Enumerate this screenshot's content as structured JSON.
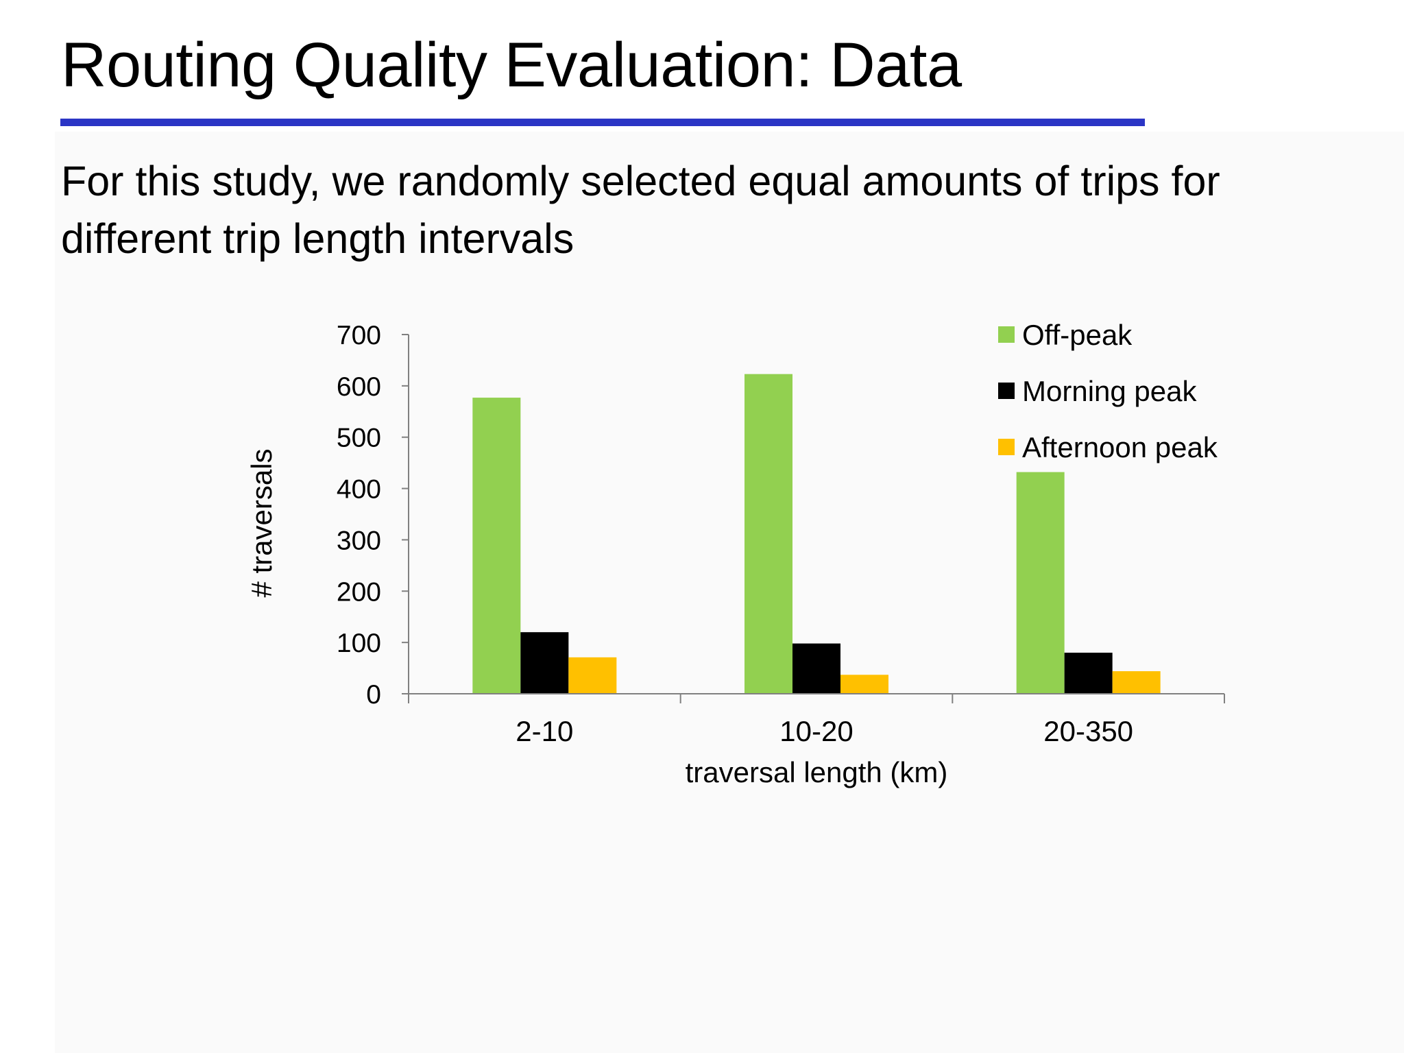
{
  "slide": {
    "title": "Routing Quality Evaluation: Data",
    "body": "For this study, we randomly selected equal amounts of trips for different trip length intervals"
  },
  "colors": {
    "title_rule": "#2b35c5",
    "off_peak": "#92d050",
    "morning_peak": "#000000",
    "afternoon_peak": "#ffc000"
  },
  "chart_data": {
    "type": "bar",
    "categories": [
      "2-10",
      "10-20",
      "20-350"
    ],
    "series": [
      {
        "name": "Off-peak",
        "values": [
          577,
          623,
          432
        ],
        "color": "#92d050"
      },
      {
        "name": "Morning peak",
        "values": [
          120,
          98,
          80
        ],
        "color": "#000000"
      },
      {
        "name": "Afternoon peak",
        "values": [
          71,
          37,
          44
        ],
        "color": "#ffc000"
      }
    ],
    "title": "",
    "xlabel": "traversal length (km)",
    "ylabel": "# traversals",
    "ylim": [
      0,
      700
    ],
    "yticks": [
      "0",
      "100",
      "200",
      "300",
      "400",
      "500",
      "600",
      "700"
    ],
    "grid": false,
    "legend_position": "top-right"
  }
}
